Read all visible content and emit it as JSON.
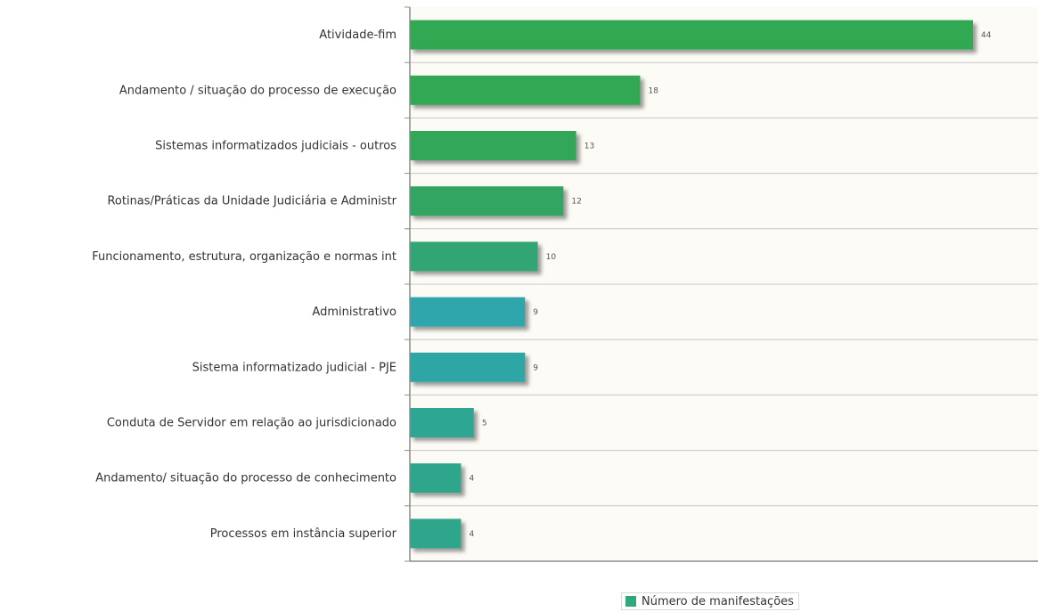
{
  "chart_data": {
    "type": "bar",
    "orientation": "horizontal",
    "categories": [
      "Atividade-fim",
      "Andamento / situação do processo de execução",
      "Sistemas informatizados judiciais - outros",
      "Rotinas/Práticas da Unidade Judiciária e Administr",
      "Funcionamento, estrutura, organização e normas int",
      "Administrativo",
      "Sistema informatizado judicial - PJE",
      "Conduta de Servidor em relação ao jurisdicionado",
      "Andamento/ situação do processo de conhecimento",
      "Processos em instância superior"
    ],
    "series": [
      {
        "name": "Número de manifestações",
        "values": [
          44,
          18,
          13,
          12,
          10,
          9,
          9,
          5,
          4,
          4
        ]
      }
    ],
    "bar_colors": [
      "#31a853",
      "#31a853",
      "#31a75a",
      "#31a562",
      "#31a574",
      "#2fa6ab",
      "#2fa6a6",
      "#2fa694",
      "#2fa68c",
      "#2fa68c"
    ],
    "plot_background": "#fdfbf5",
    "xlim": [
      0,
      49
    ],
    "grid": true,
    "legend": "bottom-center",
    "data_labels": true
  }
}
